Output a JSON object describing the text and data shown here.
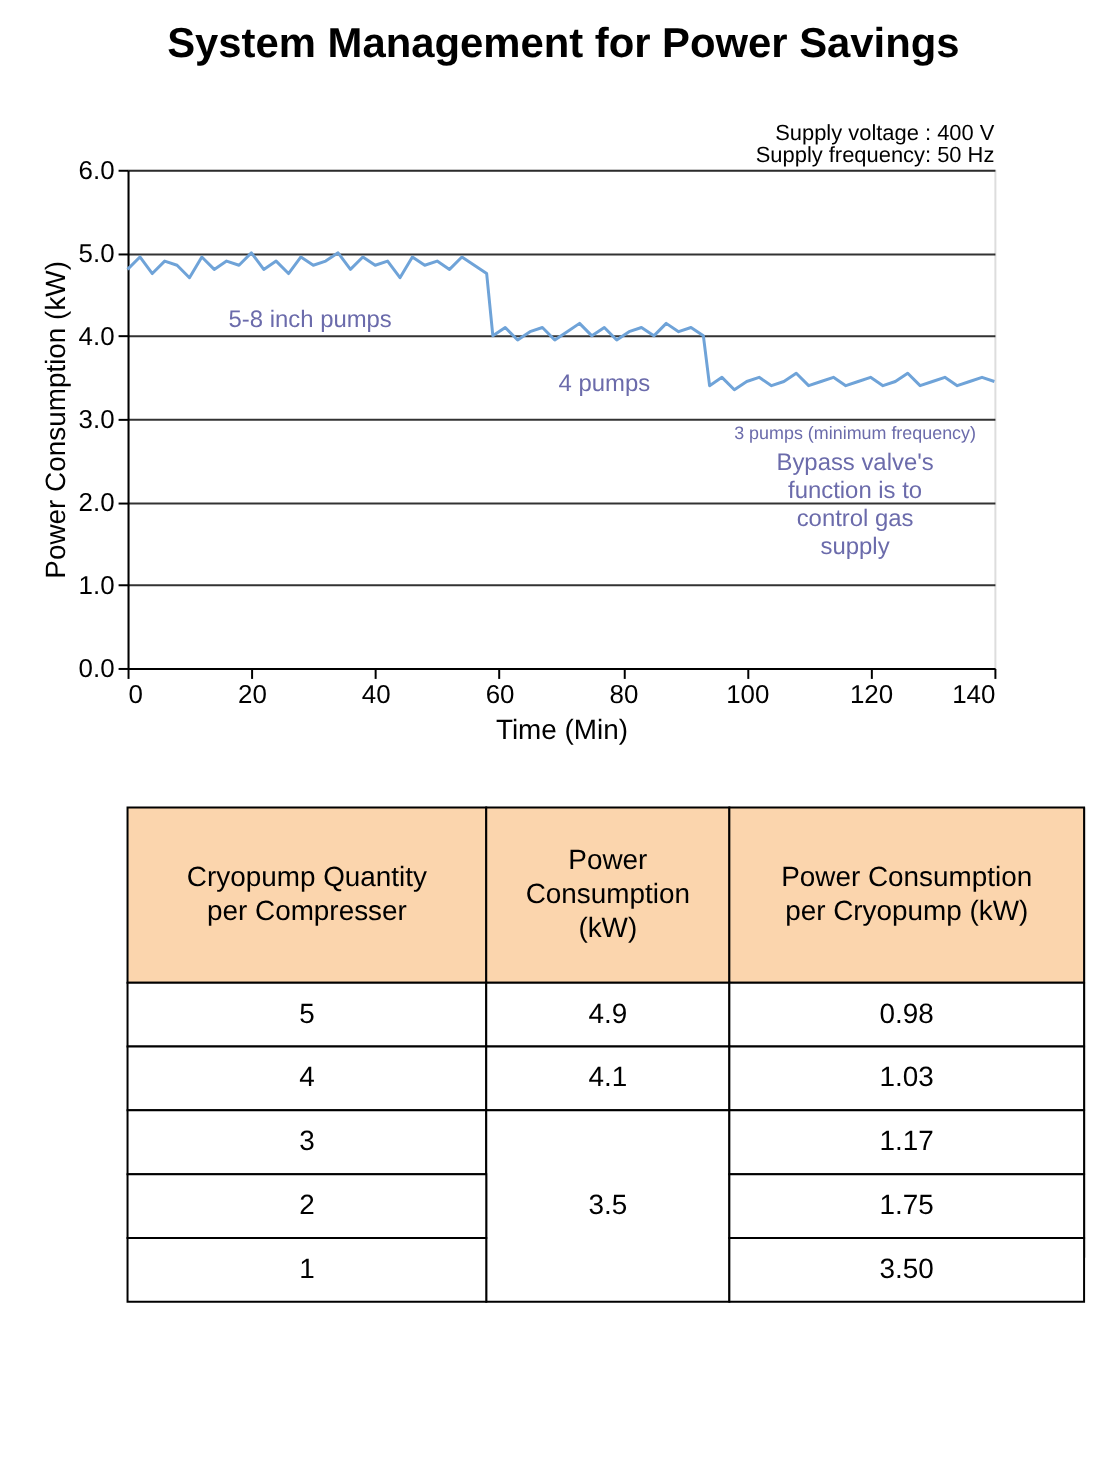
{
  "chart_data": {
    "type": "line",
    "title": "System Management for Power Savings",
    "xlabel": "Time (Min)",
    "ylabel": "Power Consumption (kW)",
    "xlim": [
      0,
      140
    ],
    "xticks": [
      0,
      20,
      40,
      60,
      80,
      100,
      120,
      140
    ],
    "ylim": [
      0,
      6
    ],
    "yticks": [
      {
        "value": 0,
        "label": "0.0"
      },
      {
        "value": 1,
        "label": "1.0"
      },
      {
        "value": 2,
        "label": "2.0"
      },
      {
        "value": 3,
        "label": "3.0"
      },
      {
        "value": 4,
        "label": "4.0"
      },
      {
        "value": 5,
        "label": "5.0"
      },
      {
        "value": 6,
        "label": "6.0"
      }
    ],
    "grid": "y",
    "legend": false,
    "annotations": [
      "Supply voltage   : 400 V",
      "Supply frequency: 50 Hz",
      "5-8 inch pumps",
      "4 pumps",
      "3 pumps (minimum frequency)",
      "Bypass valve's function is to control gas supply",
      "Cryopump Quantity per Compresser",
      "Power Consumption (kW)",
      "Power Consumption per Cryopump (kW)",
      "5",
      "4.9",
      "0.98",
      "4",
      "4.1",
      "1.03",
      "3",
      "3.5",
      "1.17",
      "2",
      "1.75",
      "1",
      "3.50"
    ],
    "series": [
      {
        "color": "#6fa3d8",
        "x": [
          0,
          2,
          4,
          6,
          8,
          10,
          12,
          14,
          16,
          18,
          20,
          22,
          24,
          26,
          28,
          30,
          32,
          34,
          36,
          38,
          40,
          42,
          44,
          46,
          48,
          50,
          52,
          54,
          56,
          58,
          59,
          61,
          63,
          65,
          67,
          69,
          71,
          73,
          75,
          77,
          79,
          81,
          83,
          85,
          87,
          89,
          91,
          93,
          94,
          96,
          98,
          100,
          102,
          104,
          106,
          108,
          110,
          112,
          114,
          116,
          118,
          120,
          122,
          124,
          126,
          128,
          130,
          132,
          134,
          136,
          138,
          140
        ],
        "values": [
          4.8,
          4.95,
          4.75,
          4.9,
          4.85,
          4.7,
          4.95,
          4.8,
          4.9,
          4.85,
          5.0,
          4.8,
          4.9,
          4.75,
          4.95,
          4.85,
          4.9,
          5.0,
          4.8,
          4.95,
          4.85,
          4.9,
          4.7,
          4.95,
          4.85,
          4.9,
          4.8,
          4.95,
          4.85,
          4.75,
          4.0,
          4.1,
          3.95,
          4.05,
          4.1,
          3.95,
          4.05,
          4.15,
          4.0,
          4.1,
          3.95,
          4.05,
          4.1,
          4.0,
          4.15,
          4.05,
          4.1,
          4.0,
          3.4,
          3.5,
          3.35,
          3.45,
          3.5,
          3.4,
          3.45,
          3.55,
          3.4,
          3.45,
          3.5,
          3.4,
          3.45,
          3.5,
          3.4,
          3.45,
          3.55,
          3.4,
          3.45,
          3.5,
          3.4,
          3.45,
          3.5,
          3.45
        ]
      }
    ]
  }
}
